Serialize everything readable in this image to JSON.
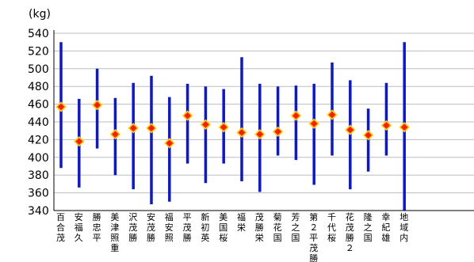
{
  "chart_data": {
    "type": "errorbar",
    "unit_label": "(kg)",
    "ylim": [
      340,
      540
    ],
    "y_ticks": [
      340,
      360,
      380,
      400,
      420,
      440,
      460,
      480,
      500,
      520,
      540
    ],
    "grid": true,
    "categories": [
      {
        "label": "百合茂",
        "lines": [
          "百",
          "合",
          "茂"
        ],
        "low": 388,
        "high": 530,
        "mean": 457
      },
      {
        "label": "安福久",
        "lines": [
          "安",
          "福",
          "久"
        ],
        "low": 366,
        "high": 466,
        "mean": 418
      },
      {
        "label": "勝忠平",
        "lines": [
          "勝",
          "忠",
          "平"
        ],
        "low": 410,
        "high": 500,
        "mean": 459
      },
      {
        "label": "美津照重",
        "lines": [
          "美",
          "津",
          "照",
          "重"
        ],
        "low": 380,
        "high": 467,
        "mean": 426
      },
      {
        "label": "沢茂勝",
        "lines": [
          "沢",
          "茂",
          "勝"
        ],
        "low": 364,
        "high": 484,
        "mean": 433
      },
      {
        "label": "安茂勝",
        "lines": [
          "安",
          "茂",
          "勝"
        ],
        "low": 347,
        "high": 492,
        "mean": 433
      },
      {
        "label": "福安照",
        "lines": [
          "福",
          "安",
          "照"
        ],
        "low": 350,
        "high": 468,
        "mean": 416
      },
      {
        "label": "平茂勝",
        "lines": [
          "平",
          "茂",
          "勝"
        ],
        "low": 393,
        "high": 483,
        "mean": 447
      },
      {
        "label": "新初英",
        "lines": [
          "新",
          "初",
          "英"
        ],
        "low": 371,
        "high": 480,
        "mean": 437
      },
      {
        "label": "美国桜",
        "lines": [
          "美",
          "国",
          "桜"
        ],
        "low": 393,
        "high": 477,
        "mean": 434
      },
      {
        "label": "福栄",
        "lines": [
          "福",
          "栄"
        ],
        "low": 373,
        "high": 513,
        "mean": 428
      },
      {
        "label": "茂勝栄",
        "lines": [
          "茂",
          "勝",
          "栄"
        ],
        "low": 361,
        "high": 483,
        "mean": 426
      },
      {
        "label": "菊花国",
        "lines": [
          "菊",
          "花",
          "国"
        ],
        "low": 402,
        "high": 480,
        "mean": 429
      },
      {
        "label": "芳之国",
        "lines": [
          "芳",
          "之",
          "国"
        ],
        "low": 397,
        "high": 481,
        "mean": 447
      },
      {
        "label": "第2平茂勝",
        "lines": [
          "第",
          "２",
          "平",
          "茂",
          "勝"
        ],
        "low": 369,
        "high": 483,
        "mean": 438
      },
      {
        "label": "千代桜",
        "lines": [
          "千",
          "代",
          "桜"
        ],
        "low": 402,
        "high": 507,
        "mean": 448
      },
      {
        "label": "花茂勝2",
        "lines": [
          "花",
          "茂",
          "勝",
          "２"
        ],
        "low": 364,
        "high": 487,
        "mean": 431
      },
      {
        "label": "隆之国",
        "lines": [
          "隆",
          "之",
          "国"
        ],
        "low": 384,
        "high": 455,
        "mean": 425
      },
      {
        "label": "幸紀雄",
        "lines": [
          "幸",
          "紀",
          "雄"
        ],
        "low": 402,
        "high": 484,
        "mean": 436
      },
      {
        "label": "地域内",
        "lines": [
          "地",
          "域",
          "内"
        ],
        "low": 340,
        "high": 530,
        "mean": 434
      }
    ],
    "colors": {
      "range_bar": "#0a16d8",
      "mean_fill": "#ff1a00",
      "mean_stroke": "#ffcc00",
      "grid": "#bdbdbd",
      "axis": "#000000"
    }
  }
}
